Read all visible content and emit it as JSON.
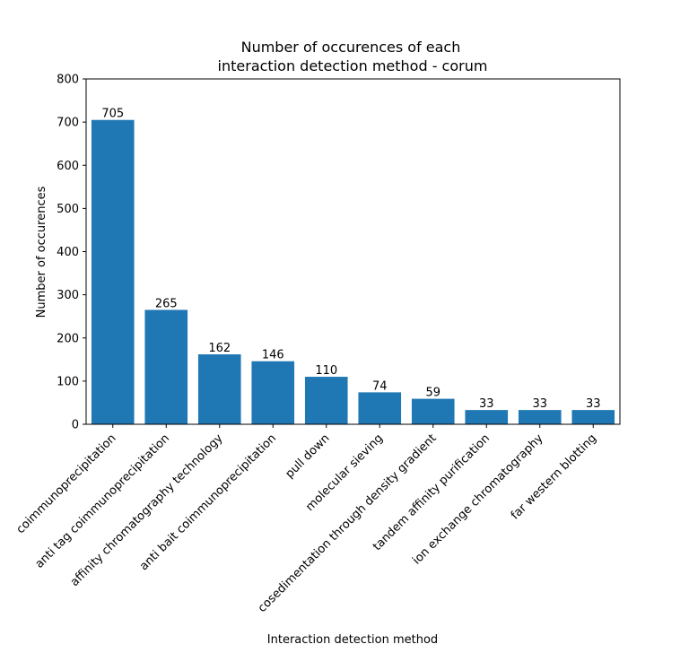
{
  "chart_data": {
    "type": "bar",
    "title_lines": [
      "Number of occurences of each",
      "interaction detection method - corum"
    ],
    "xlabel": "Interaction detection method",
    "ylabel": "Number of occurences",
    "categories": [
      "coimmunoprecipitation",
      "anti tag coimmunoprecipitation",
      "affinity chromatography technology",
      "anti bait coimmunoprecipitation",
      "pull down",
      "molecular sieving",
      "cosedimentation through density gradient",
      "tandem affinity purification",
      "ion exchange chromatography",
      "far western blotting"
    ],
    "values": [
      705,
      265,
      162,
      146,
      110,
      74,
      59,
      33,
      33,
      33
    ],
    "data_labels": [
      "705",
      "265",
      "162",
      "146",
      "110",
      "74",
      "59",
      "33",
      "33",
      "33"
    ],
    "ylim": [
      0,
      800
    ],
    "yticks": [
      0,
      100,
      200,
      300,
      400,
      500,
      600,
      700,
      800
    ],
    "ytick_labels": [
      "0",
      "100",
      "200",
      "300",
      "400",
      "500",
      "600",
      "700",
      "800"
    ],
    "bar_color": "#1f77b4",
    "grid": false,
    "legend": "none"
  }
}
